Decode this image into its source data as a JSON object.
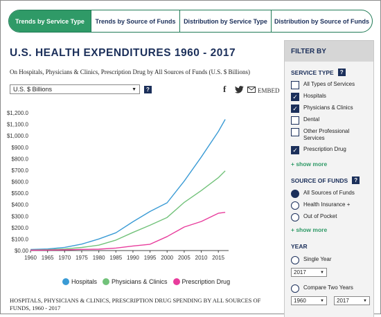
{
  "tabs": [
    "Trends by Service Type",
    "Trends by Source of Funds",
    "Distribution by Service Type",
    "Distribution by Source of Funds"
  ],
  "title": "U.S. HEALTH EXPENDITURES 1960 - 2017",
  "subtitle": "On Hospitals, Physicians & Clinics, Prescription Drug by All Sources of Funds (U.S. $ Billions)",
  "unit_select": "U.S. $ Billions",
  "share": {
    "facebook": "f",
    "embed": "EMBED"
  },
  "caption": "HOSPITALS, PHYSICIANS & CLINICS, PRESCRIPTION DRUG SPENDING BY ALL SOURCES OF FUNDS, 1960 - 2017",
  "filter": {
    "header": "FILTER BY",
    "service_type": {
      "label": "SERVICE TYPE",
      "options": [
        {
          "label": "All Types of Services",
          "checked": false
        },
        {
          "label": "Hospitals",
          "checked": true
        },
        {
          "label": "Physicians & Clinics",
          "checked": true
        },
        {
          "label": "Dental",
          "checked": false
        },
        {
          "label": "Other Professional Services",
          "checked": false
        },
        {
          "label": "Prescription Drug",
          "checked": true
        }
      ],
      "more": "+ show more"
    },
    "source": {
      "label": "SOURCE OF FUNDS",
      "options": [
        {
          "label": "All Sources of Funds",
          "selected": true
        },
        {
          "label": "Health Insurance +",
          "selected": false
        },
        {
          "label": "Out of Pocket",
          "selected": false
        }
      ],
      "more": "+ show more"
    },
    "year": {
      "label": "YEAR",
      "single": "Single Year",
      "single_value": "2017",
      "compare": "Compare Two Years",
      "compare_from": "1960",
      "compare_to": "2017"
    }
  },
  "colors": {
    "hospitals": "#3a9bd5",
    "physicians": "#72c27a",
    "drug": "#e83c9c",
    "navy": "#1b2f5a",
    "green": "#2f9a67"
  },
  "chart_data": {
    "type": "line",
    "ylim": [
      0,
      1200
    ],
    "yticks": [
      "$0.00",
      "$100.0",
      "$200.0",
      "$300.0",
      "$400.0",
      "$500.0",
      "$600.0",
      "$700.0",
      "$800.0",
      "$900.0",
      "$1,000.0",
      "$1,100.0",
      "$1,200.0"
    ],
    "xticks": [
      "1960",
      "1965",
      "1970",
      "1975",
      "1980",
      "1985",
      "1990",
      "1995",
      "2000",
      "2005",
      "2010",
      "2015"
    ],
    "x": [
      1960,
      1965,
      1970,
      1975,
      1980,
      1985,
      1990,
      1995,
      2000,
      2005,
      2010,
      2015,
      2017
    ],
    "series": [
      {
        "name": "Hospitals",
        "values": [
          9,
          14,
          28,
          56,
          101,
          155,
          251,
          341,
          416,
          605,
          815,
          1037,
          1143
        ]
      },
      {
        "name": "Physicians & Clinics",
        "values": [
          5,
          8,
          14,
          27,
          47,
          91,
          158,
          221,
          288,
          420,
          523,
          635,
          694
        ]
      },
      {
        "name": "Prescription Drug",
        "values": [
          3,
          4,
          6,
          10,
          12,
          22,
          40,
          55,
          122,
          205,
          253,
          325,
          333
        ]
      }
    ]
  }
}
